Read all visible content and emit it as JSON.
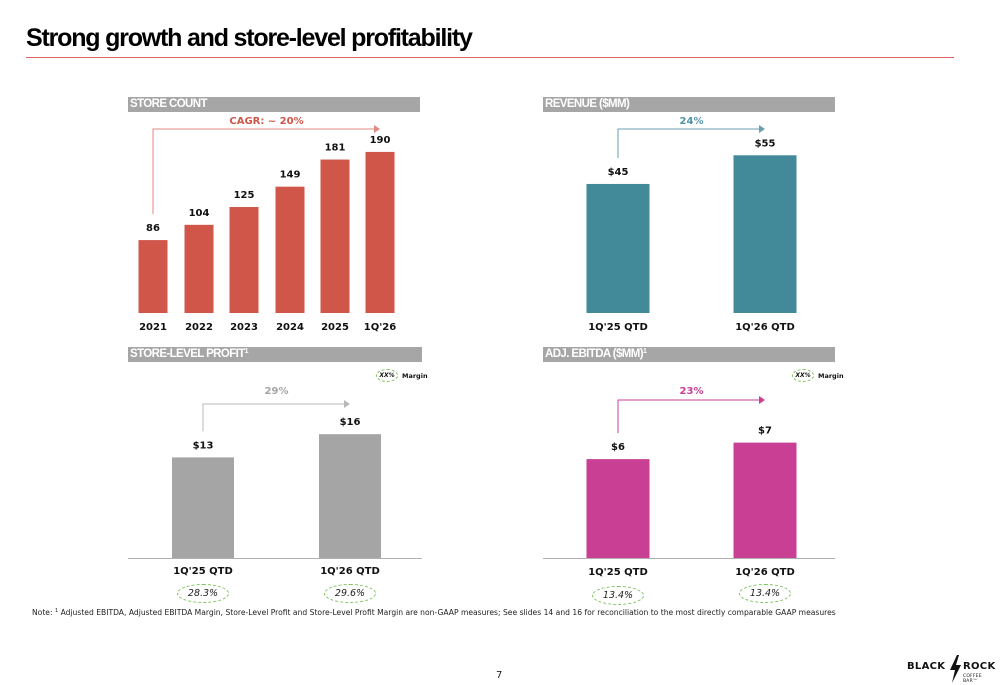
{
  "page": {
    "title": "Strong growth and store-level profitability",
    "page_number": "7",
    "footnote": {
      "marker": "1",
      "prefix": "Note: ",
      "text": "Adjusted EBITDA, Adjusted EBITDA Margin, Store-Level Profit and Store-Level Profit Margin are non-GAAP measures; See slides 14 and 16 for reconciliation to the most directly comparable GAAP measures"
    },
    "logo": {
      "word1": "BLACK",
      "word2": "ROCK",
      "sub": "COFFEE BAR™",
      "icon": "lightning-bolt-icon"
    },
    "colors": {
      "title_rule": "#e05f5f",
      "panel_header": "#a6a6a6",
      "margin_oval_border": "#7cc45e"
    }
  },
  "chart_data": [
    {
      "id": "store_count",
      "type": "bar",
      "title": "STORE COUNT",
      "categories": [
        "2021",
        "2022",
        "2023",
        "2024",
        "2025",
        "1Q'26"
      ],
      "values": [
        86,
        104,
        125,
        149,
        181,
        190
      ],
      "value_labels": [
        "86",
        "104",
        "125",
        "149",
        "181",
        "190"
      ],
      "color": "#d0564a",
      "growth_label": "CAGR: ~ 20%",
      "growth_color": "#d0564a",
      "arrow_color": "#e08a82",
      "ylim": [
        0,
        230
      ],
      "grid": false,
      "legend": "none"
    },
    {
      "id": "revenue",
      "type": "bar",
      "title": "REVENUE ($MM)",
      "categories": [
        "1Q'25 QTD",
        "1Q'26 QTD"
      ],
      "values": [
        45,
        55
      ],
      "value_labels": [
        "$45",
        "$55"
      ],
      "color": "#428a9a",
      "growth_label": "24%",
      "growth_color": "#4f93a6",
      "arrow_color": "#6b9fb0",
      "ylim": [
        0,
        68
      ],
      "grid": false,
      "legend": "none"
    },
    {
      "id": "store_level_profit",
      "type": "bar",
      "title": "STORE-LEVEL PROFIT",
      "title_footnote": "1",
      "categories": [
        "1Q'25 QTD",
        "1Q'26 QTD"
      ],
      "values": [
        13,
        16
      ],
      "value_labels": [
        "$13",
        "$16"
      ],
      "color": "#a5a5a5",
      "growth_label": "29%",
      "growth_color": "#a5a5a5",
      "arrow_color": "#b8b8b8",
      "margins": [
        "28.3%",
        "29.6%"
      ],
      "legend": "top-right",
      "legend_placeholder": "XX%",
      "legend_label": "Margin",
      "ylim": [
        0,
        23
      ],
      "grid": false
    },
    {
      "id": "adj_ebitda",
      "type": "bar",
      "title": "ADJ. EBITDA ($MM)",
      "title_footnote": "1",
      "categories": [
        "1Q'25 QTD",
        "1Q'26 QTD"
      ],
      "values": [
        6,
        7
      ],
      "value_labels": [
        "$6",
        "$7"
      ],
      "color": "#c93f94",
      "growth_label": "23%",
      "growth_color": "#c93f94",
      "arrow_color": "#c93f94",
      "margins": [
        "13.4%",
        "13.4%"
      ],
      "legend": "top-right",
      "legend_placeholder": "XX%",
      "legend_label": "Margin",
      "ylim": [
        0,
        10.8
      ],
      "grid": false
    }
  ]
}
